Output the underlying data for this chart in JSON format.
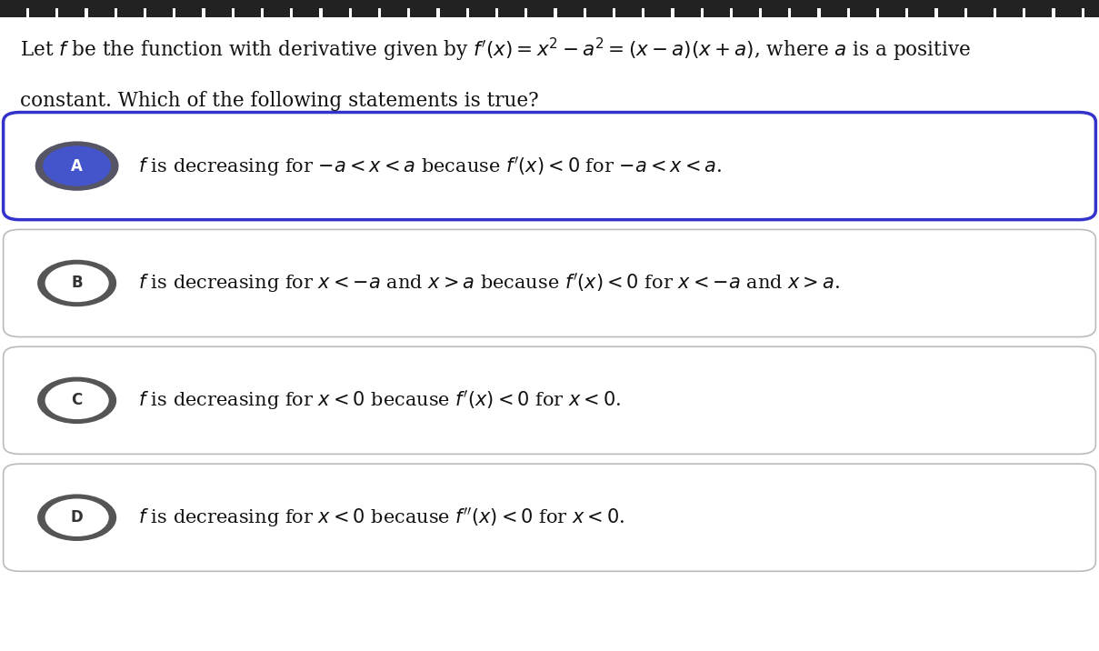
{
  "background_color": "#ffffff",
  "question_text_line1": "Let $f$ be the function with derivative given by $f'(x) = x^2 - a^2 = (x-a)(x+a)$, where $a$ is a positive",
  "question_text_line2": "constant. Which of the following statements is true?",
  "options": [
    {
      "label": "A",
      "text": "$f$ is decreasing for $-a < x < a$ because $f'(x) < 0$ for $-a < x < a$.",
      "selected": true,
      "label_fill": "#4455cc",
      "label_ring": "#555566",
      "label_fg": "#ffffff",
      "border_color": "#3333cc",
      "border_width": 2.5
    },
    {
      "label": "B",
      "text": "$f$ is decreasing for $x < -a$ and $x > a$ because $f'(x) < 0$ for $x < -a$ and $x > a$.",
      "selected": false,
      "label_fill": "#ffffff",
      "label_ring": "#555555",
      "label_fg": "#333333",
      "border_color": "#bbbbbb",
      "border_width": 1.2
    },
    {
      "label": "C",
      "text": "$f$ is decreasing for $x < 0$ because $f'(x) < 0$ for $x < 0$.",
      "selected": false,
      "label_fill": "#ffffff",
      "label_ring": "#555555",
      "label_fg": "#333333",
      "border_color": "#bbbbbb",
      "border_width": 1.2
    },
    {
      "label": "D",
      "text": "$f$ is decreasing for $x < 0$ because $f''(x) < 0$ for $x < 0$.",
      "selected": false,
      "label_fill": "#ffffff",
      "label_ring": "#555555",
      "label_fg": "#333333",
      "border_color": "#bbbbbb",
      "border_width": 1.2
    }
  ],
  "question_fontsize": 15.5,
  "option_fontsize": 15,
  "label_fontsize": 12
}
